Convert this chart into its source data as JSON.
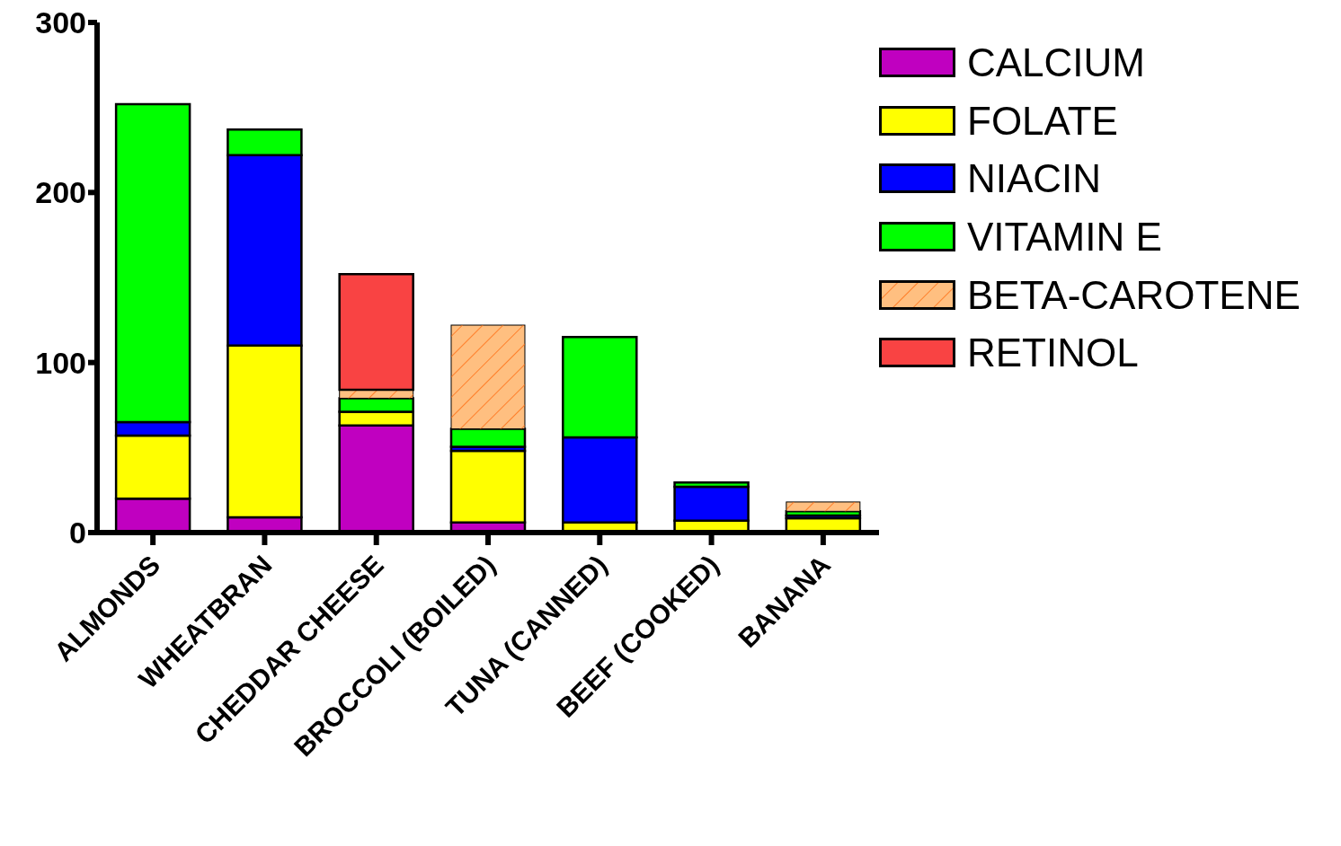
{
  "chart_data": {
    "type": "bar",
    "stacked": true,
    "categories": [
      "ALMONDS",
      "WHEATBRAN",
      "CHEDDAR CHEESE",
      "BROCCOLI (BOILED)",
      "TUNA (CANNED)",
      "BEEF (COOKED)",
      "BANANA"
    ],
    "series": [
      {
        "name": "CALCIUM",
        "color": "#c000c0",
        "values": [
          20,
          9,
          63,
          6,
          0,
          0,
          0
        ]
      },
      {
        "name": "FOLATE",
        "color": "#ffff00",
        "values": [
          37,
          101,
          8,
          42,
          6,
          7,
          8.5
        ]
      },
      {
        "name": "NIACIN",
        "color": "#0000ff",
        "values": [
          8,
          112,
          0,
          2.5,
          50,
          20,
          1.5
        ]
      },
      {
        "name": "VITAMIN E",
        "color": "#00ff00",
        "values": [
          187,
          15,
          8,
          10.5,
          59,
          2.5,
          2.5
        ]
      },
      {
        "name": "BETA-CAROTENE",
        "color": "#ffbf80",
        "values": [
          0,
          0,
          5,
          61,
          0,
          0,
          5.5
        ]
      },
      {
        "name": "RETINOL",
        "color": "#f94343",
        "values": [
          0,
          0,
          68,
          0,
          0,
          0,
          0
        ]
      }
    ],
    "ylim": [
      0,
      300
    ],
    "yticks": [
      0,
      100,
      200,
      300
    ],
    "grid": false,
    "legend": "top right"
  }
}
